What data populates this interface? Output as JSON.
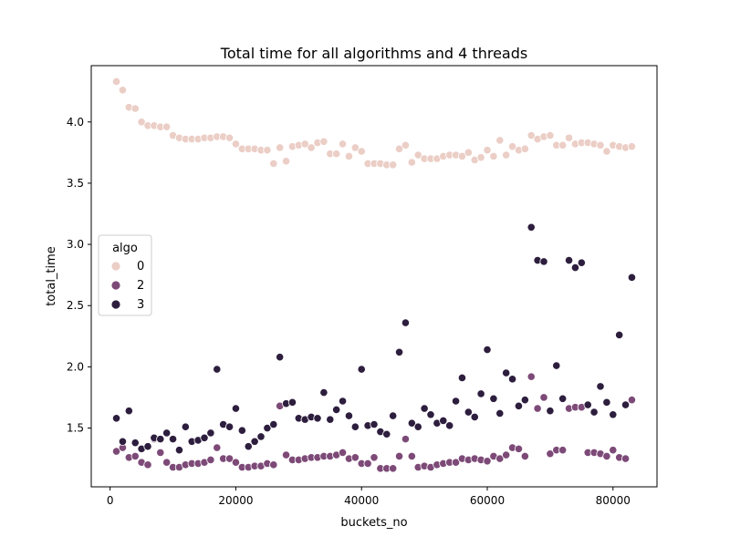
{
  "chart_data": {
    "type": "scatter",
    "title": "Total time for all algorithms and 4 threads",
    "xlabel": "buckets_no",
    "ylabel": "total_time",
    "xlim": [
      -3000,
      87000
    ],
    "ylim": [
      1.02,
      4.46
    ],
    "xticks": [
      0,
      20000,
      40000,
      60000,
      80000
    ],
    "yticks": [
      1.5,
      2.0,
      2.5,
      3.0,
      3.5,
      4.0
    ],
    "xtick_labels": [
      "0",
      "20000",
      "40000",
      "60000",
      "80000"
    ],
    "ytick_labels": [
      "1.5",
      "2.0",
      "2.5",
      "3.0",
      "3.5",
      "4.0"
    ],
    "grid": false,
    "legend": {
      "title": "algo",
      "placement": "center-left"
    },
    "x": [
      1000,
      2000,
      3000,
      4000,
      5000,
      6000,
      7000,
      8000,
      9000,
      10000,
      11000,
      12000,
      13000,
      14000,
      15000,
      16000,
      17000,
      18000,
      19000,
      20000,
      21000,
      22000,
      23000,
      24000,
      25000,
      26000,
      27000,
      28000,
      29000,
      30000,
      31000,
      32000,
      33000,
      34000,
      35000,
      36000,
      37000,
      38000,
      39000,
      40000,
      41000,
      42000,
      43000,
      44000,
      45000,
      46000,
      47000,
      48000,
      49000,
      50000,
      51000,
      52000,
      53000,
      54000,
      55000,
      56000,
      57000,
      58000,
      59000,
      60000,
      61000,
      62000,
      63000,
      64000,
      65000,
      66000,
      67000,
      68000,
      69000,
      70000,
      71000,
      72000,
      73000,
      74000,
      75000,
      76000,
      77000,
      78000,
      79000,
      80000,
      81000,
      82000,
      83000
    ],
    "series": [
      {
        "name": "0",
        "color": "#ebcec6",
        "values": [
          4.33,
          4.26,
          4.12,
          4.11,
          4.0,
          3.97,
          3.97,
          3.96,
          3.96,
          3.89,
          3.87,
          3.86,
          3.86,
          3.86,
          3.87,
          3.87,
          3.88,
          3.88,
          3.87,
          3.82,
          3.78,
          3.78,
          3.78,
          3.77,
          3.77,
          3.66,
          3.79,
          3.68,
          3.8,
          3.81,
          3.82,
          3.79,
          3.83,
          3.84,
          3.74,
          3.74,
          3.82,
          3.72,
          3.79,
          3.76,
          3.66,
          3.66,
          3.66,
          3.65,
          3.65,
          3.78,
          3.81,
          3.67,
          3.73,
          3.7,
          3.7,
          3.7,
          3.72,
          3.73,
          3.73,
          3.72,
          3.75,
          3.69,
          3.71,
          3.77,
          3.72,
          3.85,
          3.73,
          3.8,
          3.77,
          3.78,
          3.89,
          3.86,
          3.88,
          3.89,
          3.81,
          3.81,
          3.87,
          3.82,
          3.83,
          3.83,
          3.82,
          3.81,
          3.76,
          3.81,
          3.8,
          3.79,
          3.8
        ]
      },
      {
        "name": "2",
        "color": "#7d4a78",
        "values": [
          1.31,
          1.34,
          1.26,
          1.27,
          1.22,
          1.2,
          1.41,
          1.3,
          1.22,
          1.18,
          1.18,
          1.2,
          1.21,
          1.21,
          1.22,
          1.24,
          1.34,
          1.25,
          1.25,
          1.22,
          1.18,
          1.18,
          1.19,
          1.19,
          1.21,
          1.2,
          1.68,
          1.28,
          1.24,
          1.24,
          1.25,
          1.26,
          1.26,
          1.27,
          1.27,
          1.28,
          1.3,
          1.25,
          1.26,
          1.21,
          1.21,
          1.26,
          1.17,
          1.17,
          1.17,
          1.27,
          1.41,
          1.27,
          1.18,
          1.19,
          1.18,
          1.2,
          1.21,
          1.22,
          1.22,
          1.25,
          1.24,
          1.25,
          1.24,
          1.23,
          1.27,
          1.25,
          1.28,
          1.34,
          1.33,
          1.27,
          1.92,
          1.66,
          1.75,
          1.29,
          1.32,
          1.32,
          1.66,
          1.67,
          1.67,
          1.3,
          1.3,
          1.29,
          1.27,
          1.32,
          1.26,
          1.25,
          1.73
        ]
      },
      {
        "name": "3",
        "color": "#2d1e3e",
        "values": [
          1.58,
          1.39,
          1.64,
          1.38,
          1.33,
          1.35,
          1.42,
          1.41,
          1.46,
          1.41,
          1.32,
          1.51,
          1.39,
          1.4,
          1.42,
          1.46,
          1.98,
          1.53,
          1.51,
          1.66,
          1.48,
          1.35,
          1.39,
          1.43,
          1.5,
          1.53,
          2.08,
          1.7,
          1.71,
          1.58,
          1.57,
          1.59,
          1.58,
          1.79,
          1.57,
          1.65,
          1.72,
          1.6,
          1.51,
          1.98,
          1.52,
          1.53,
          1.47,
          1.45,
          1.6,
          2.12,
          2.36,
          1.54,
          1.51,
          1.66,
          1.61,
          1.54,
          1.56,
          1.52,
          1.72,
          1.91,
          1.63,
          1.59,
          1.78,
          2.14,
          1.74,
          1.62,
          1.95,
          1.9,
          1.68,
          1.73,
          3.14,
          2.87,
          2.86,
          1.64,
          2.01,
          1.74,
          2.87,
          2.81,
          2.85,
          1.69,
          1.63,
          1.84,
          1.71,
          1.61,
          2.26,
          1.69,
          2.73
        ]
      }
    ]
  }
}
